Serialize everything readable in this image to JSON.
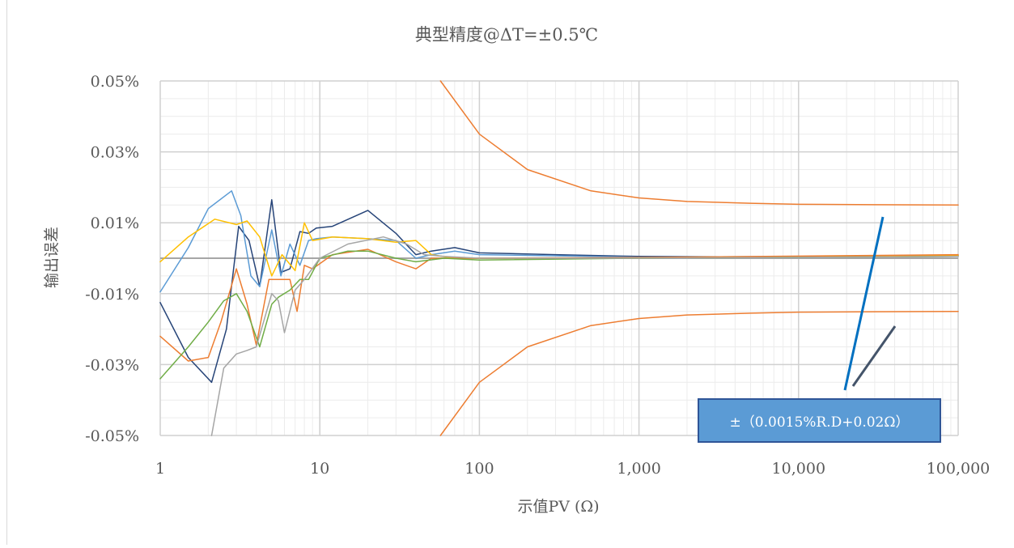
{
  "chart_data": {
    "type": "line",
    "title": "典型精度@ΔT=±0.5℃",
    "xlabel": "示值PV (Ω)",
    "ylabel": "输出误差",
    "x_scale": "log",
    "xlim": [
      1,
      100000
    ],
    "ylim": [
      -0.05,
      0.05
    ],
    "y_unit": "%",
    "x_ticks": [
      1,
      10,
      100,
      1000,
      10000,
      100000
    ],
    "x_tick_labels": [
      "1",
      "10",
      "100",
      "1,000",
      "10,000",
      "100,000"
    ],
    "y_ticks": [
      -0.05,
      -0.03,
      -0.01,
      0.01,
      0.03,
      0.05
    ],
    "y_tick_labels": [
      "-0.05%",
      "-0.03%",
      "-0.01%",
      "0.01%",
      "0.03%",
      "0.05%"
    ],
    "grid": true,
    "legend": "none",
    "annotation": "±（0.0015%R.D+0.02Ω）",
    "series": [
      {
        "color": "#ed7d31",
        "x": [
          57,
          100,
          200,
          500,
          1000,
          2000,
          5000,
          10000,
          30000,
          100000
        ],
        "y": [
          0.05,
          0.035,
          0.025,
          0.019,
          0.017,
          0.016,
          0.0155,
          0.0152,
          0.0151,
          0.015
        ]
      },
      {
        "color": "#ed7d31",
        "x": [
          57,
          100,
          200,
          500,
          1000,
          2000,
          5000,
          10000,
          30000,
          100000
        ],
        "y": [
          -0.05,
          -0.035,
          -0.025,
          -0.019,
          -0.017,
          -0.016,
          -0.0155,
          -0.0152,
          -0.0151,
          -0.015
        ]
      },
      {
        "color": "#264478",
        "x": [
          1,
          1.5,
          2.1,
          2.6,
          3.1,
          3.6,
          4.2,
          5,
          5.7,
          6.5,
          7.5,
          8.5,
          9.5,
          12,
          20,
          30,
          40,
          50,
          70,
          100,
          300,
          1000,
          10000,
          100000
        ],
        "y": [
          -0.0125,
          -0.028,
          -0.035,
          -0.02,
          0.009,
          0.005,
          -0.008,
          0.0165,
          -0.004,
          -0.003,
          0.0075,
          0.007,
          0.0085,
          0.009,
          0.0135,
          0.007,
          0.001,
          0.002,
          0.003,
          0.0015,
          0.001,
          0.0005,
          0.0003,
          0.0008
        ]
      },
      {
        "color": "#5b9bd5",
        "x": [
          1,
          1.5,
          2,
          2.8,
          3.2,
          3.7,
          4.2,
          5,
          5.7,
          6.5,
          7.5,
          8.5,
          9.5,
          12,
          20,
          30,
          40,
          50,
          70,
          100,
          1000,
          100000
        ],
        "y": [
          -0.0095,
          0.003,
          0.014,
          0.019,
          0.012,
          -0.005,
          -0.008,
          0.008,
          -0.005,
          0.004,
          -0.002,
          0.005,
          0.0055,
          0.006,
          0.0055,
          0.005,
          0.0,
          0.001,
          0.002,
          0.001,
          0.0003,
          0.0007
        ]
      },
      {
        "color": "#ffc000",
        "x": [
          1,
          1.5,
          2.2,
          3,
          3.5,
          4.2,
          5,
          5.8,
          7,
          8,
          9,
          12,
          20,
          30,
          40,
          50,
          70,
          100,
          1000,
          100000
        ],
        "y": [
          -0.001,
          0.006,
          0.011,
          0.0095,
          0.0105,
          0.006,
          -0.005,
          0.001,
          -0.0035,
          0.01,
          0.005,
          0.006,
          0.0055,
          0.0045,
          0.005,
          0.001,
          0.0,
          0.0,
          0.0,
          0.0007
        ]
      },
      {
        "color": "#ed7d31",
        "x": [
          1,
          1.5,
          2,
          2.4,
          3,
          3.5,
          4,
          4.8,
          5.5,
          6.5,
          7.2,
          8,
          9,
          12,
          20,
          30,
          40,
          50,
          70,
          100,
          1000,
          100000
        ],
        "y": [
          -0.022,
          -0.029,
          -0.028,
          -0.018,
          -0.003,
          -0.013,
          -0.0245,
          -0.006,
          -0.006,
          -0.006,
          -0.015,
          -0.002,
          -0.003,
          0.001,
          0.0025,
          -0.001,
          -0.003,
          0.0,
          0.0,
          0.0,
          0.0002,
          0.001
        ]
      },
      {
        "color": "#70ad47",
        "x": [
          1,
          1.5,
          2,
          2.5,
          3,
          3.5,
          4.2,
          5,
          5.5,
          6.5,
          7.5,
          8.5,
          10,
          15,
          20,
          30,
          40,
          60,
          100,
          1000,
          100000
        ],
        "y": [
          -0.034,
          -0.025,
          -0.018,
          -0.012,
          -0.01,
          -0.015,
          -0.025,
          -0.013,
          -0.011,
          -0.009,
          -0.006,
          -0.006,
          0.0,
          0.002,
          0.002,
          0.0,
          -0.001,
          0.0,
          -0.0005,
          0.0,
          0.0005
        ]
      },
      {
        "color": "#a5a5a5",
        "x": [
          2.1,
          2.5,
          3,
          3.5,
          4,
          5,
          5.5,
          6,
          7,
          8,
          10,
          15,
          25,
          35,
          45,
          60,
          100,
          1000,
          100000
        ],
        "y": [
          -0.05,
          -0.031,
          -0.027,
          -0.026,
          -0.025,
          -0.01,
          -0.012,
          -0.021,
          -0.009,
          -0.006,
          0.0,
          0.004,
          0.006,
          0.004,
          0.001,
          0.0005,
          0.0,
          0.0,
          0.0005
        ]
      }
    ]
  }
}
